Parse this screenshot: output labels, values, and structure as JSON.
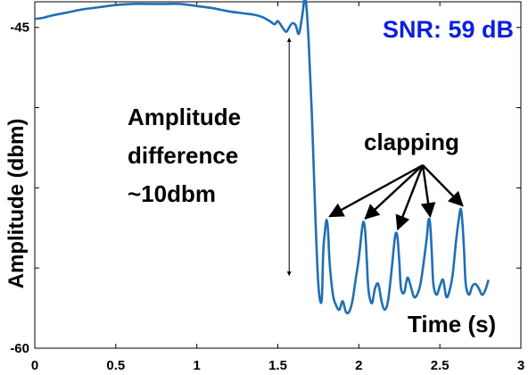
{
  "chart_data": {
    "type": "line",
    "title": "",
    "xlabel": "Time (s)",
    "ylabel": "Amplitude (dbm)",
    "xlim": [
      0,
      3
    ],
    "ylim": [
      -60,
      -43.8
    ],
    "grid": false,
    "x_ticks": [
      "0",
      "0.5",
      "1",
      "1.5",
      "2",
      "2.5",
      "3"
    ],
    "y_ticks": [
      "-45",
      "",
      "",
      "",
      "-60"
    ],
    "series": [
      {
        "color": "#1f6fb5",
        "x": [
          0,
          0.05,
          0.1,
          0.2,
          0.3,
          0.4,
          0.5,
          0.6,
          0.7,
          0.8,
          0.9,
          1.0,
          1.1,
          1.2,
          1.3,
          1.35,
          1.4,
          1.45,
          1.48,
          1.5,
          1.52,
          1.55,
          1.57,
          1.59,
          1.61,
          1.63,
          1.65,
          1.67,
          1.69,
          1.71,
          1.73,
          1.75,
          1.77,
          1.78,
          1.79,
          1.8,
          1.81,
          1.82,
          1.84,
          1.86,
          1.88,
          1.9,
          1.92,
          1.94,
          1.96,
          1.98,
          2.0,
          2.02,
          2.03,
          2.04,
          2.05,
          2.06,
          2.08,
          2.1,
          2.12,
          2.14,
          2.16,
          2.18,
          2.2,
          2.22,
          2.23,
          2.24,
          2.25,
          2.26,
          2.28,
          2.3,
          2.32,
          2.34,
          2.36,
          2.38,
          2.4,
          2.42,
          2.43,
          2.44,
          2.45,
          2.46,
          2.48,
          2.5,
          2.52,
          2.54,
          2.56,
          2.58,
          2.6,
          2.62,
          2.63,
          2.64,
          2.65,
          2.66,
          2.68,
          2.7,
          2.72,
          2.74,
          2.76,
          2.78,
          2.8
        ],
        "y": [
          -44.6,
          -44.55,
          -44.45,
          -44.3,
          -44.15,
          -44.05,
          -43.95,
          -43.9,
          -43.9,
          -43.9,
          -43.9,
          -44.0,
          -44.1,
          -44.25,
          -44.35,
          -44.4,
          -44.5,
          -44.7,
          -44.85,
          -44.7,
          -44.9,
          -45.2,
          -45.0,
          -44.8,
          -44.9,
          -45.3,
          -44.5,
          -43.6,
          -45.6,
          -49.0,
          -53.5,
          -57.0,
          -57.8,
          -55.5,
          -54.6,
          -54.0,
          -54.5,
          -56.0,
          -57.5,
          -58.0,
          -58.2,
          -57.8,
          -58.3,
          -58.3,
          -57.8,
          -56.8,
          -55.8,
          -54.4,
          -54.1,
          -54.6,
          -56.0,
          -57.3,
          -57.9,
          -57.2,
          -57.0,
          -57.8,
          -58.2,
          -57.8,
          -56.5,
          -55.0,
          -54.6,
          -54.9,
          -56.0,
          -57.2,
          -57.4,
          -56.7,
          -57.1,
          -57.6,
          -57.5,
          -57.0,
          -56.0,
          -54.8,
          -54.0,
          -54.2,
          -55.5,
          -57.0,
          -57.5,
          -57.1,
          -56.8,
          -57.6,
          -57.3,
          -56.5,
          -55.0,
          -53.8,
          -53.5,
          -54.2,
          -55.5,
          -57.0,
          -57.5,
          -57.1,
          -57.0,
          -57.2,
          -57.5,
          -57.3,
          -56.8
        ]
      }
    ],
    "annotations": {
      "snr": "SNR: 59 dB",
      "clapping": "clapping",
      "clap_peaks": [
        [
          1.82,
          -54.0
        ],
        [
          2.04,
          -54.1
        ],
        [
          2.24,
          -54.6
        ],
        [
          2.44,
          -54.0
        ],
        [
          2.64,
          -53.5
        ]
      ],
      "diff_line": "Amplitude",
      "diff_line2": "difference",
      "diff_line3": "~10dbm",
      "diff_arrow_x": 1.57,
      "diff_arrow_y": [
        -45.5,
        -56.6
      ]
    },
    "colors": {
      "line": "#1f6fb5",
      "snr": "#0b1fe0",
      "axis": "#000000"
    }
  }
}
